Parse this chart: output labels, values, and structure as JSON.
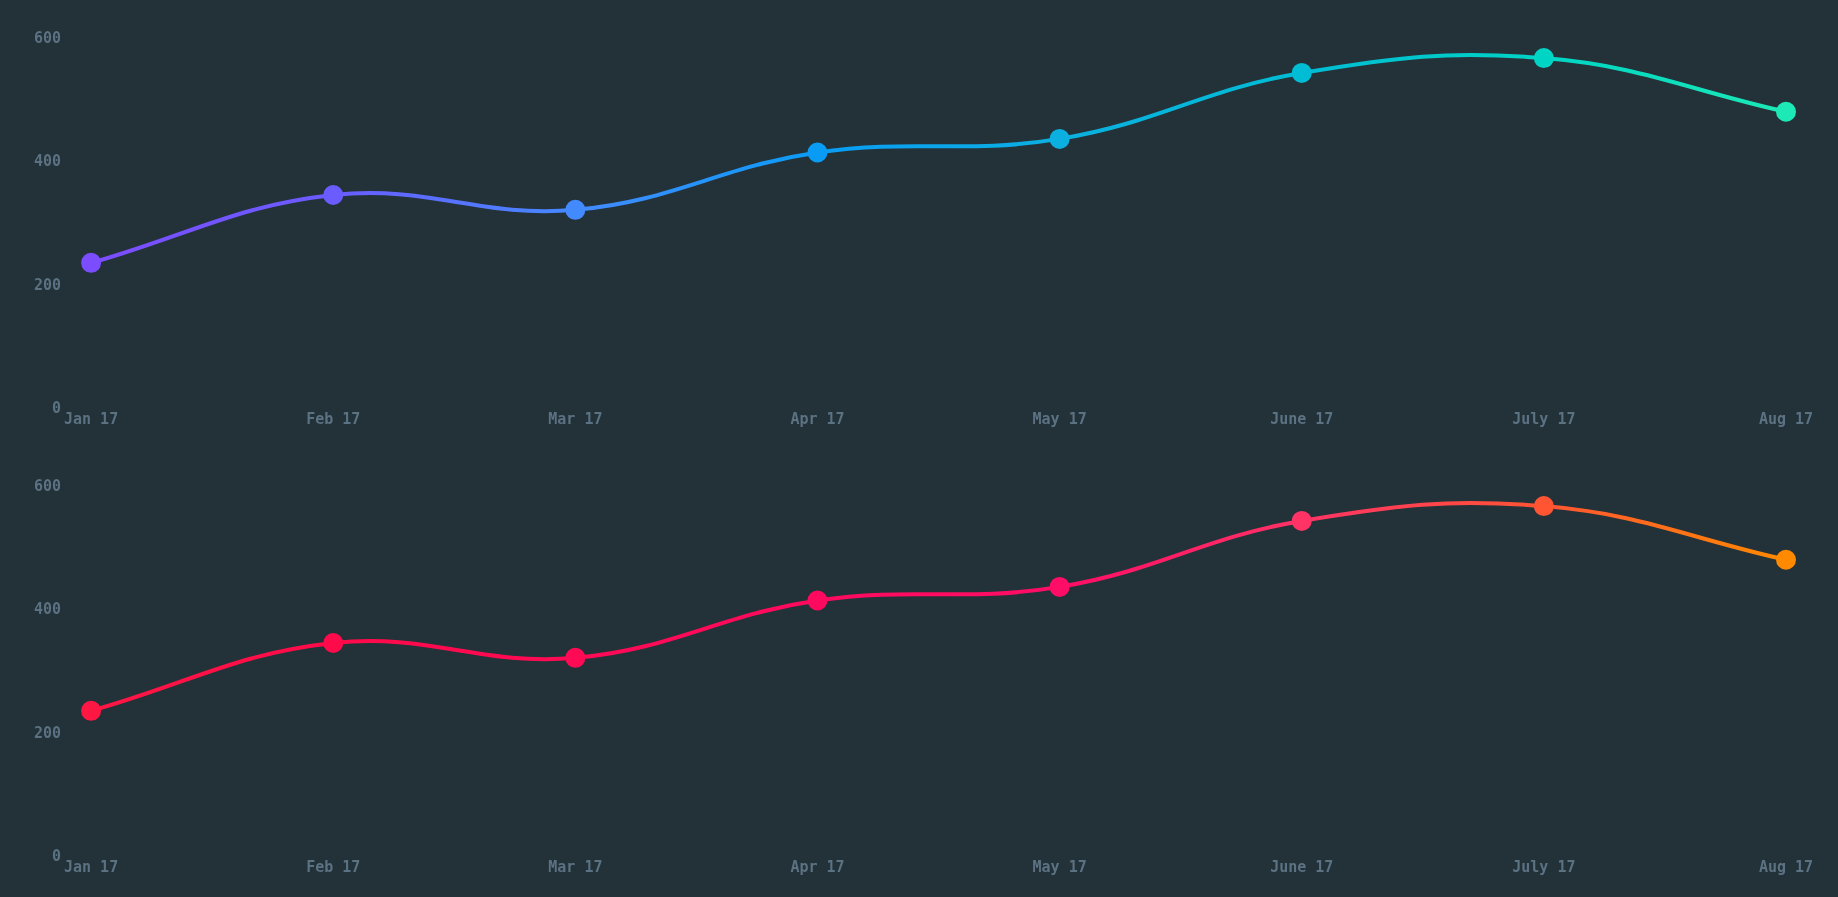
{
  "chart_data": [
    {
      "type": "line",
      "categories": [
        "Jan 17",
        "Feb 17",
        "Mar 17",
        "Apr 17",
        "May 17",
        "June 17",
        "July 17",
        "Aug 17"
      ],
      "ylim": [
        0,
        600
      ],
      "yticks": [
        0,
        200,
        400,
        600
      ],
      "grid": false,
      "legend": false,
      "marker": "circle",
      "line_style": "solid",
      "series": [
        {
          "colors": [
            "#7c4dff",
            "#6a5cff",
            "#448aff",
            "#0a9cf5",
            "#0bb0e0",
            "#00bcd4",
            "#00d4c4",
            "#1de9b6"
          ],
          "values": [
            237,
            347,
            323,
            416,
            438,
            545,
            569,
            482
          ]
        }
      ]
    },
    {
      "type": "line",
      "categories": [
        "Jan 17",
        "Feb 17",
        "Mar 17",
        "Apr 17",
        "May 17",
        "June 17",
        "July 17",
        "Aug 17"
      ],
      "ylim": [
        0,
        600
      ],
      "yticks": [
        0,
        200,
        400,
        600
      ],
      "grid": false,
      "legend": false,
      "marker": "circle",
      "line_style": "solid",
      "series": [
        {
          "colors": [
            "#ff1744",
            "#ff0a4a",
            "#ff0a55",
            "#ff0a5e",
            "#ff0d66",
            "#ff3366",
            "#ff5533",
            "#ff8a00"
          ],
          "values": [
            237,
            347,
            323,
            416,
            438,
            545,
            569,
            482
          ]
        }
      ]
    }
  ]
}
